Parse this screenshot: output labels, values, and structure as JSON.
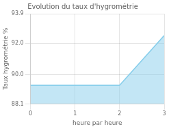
{
  "chart_data": {
    "type": "area",
    "title": "Evolution du taux d'hygrométrie",
    "xlabel": "heure par heure",
    "ylabel": "Taux hygrométrie %",
    "x": [
      0,
      2,
      3
    ],
    "values": [
      89.3,
      89.3,
      92.5
    ],
    "color": "#87ceeb",
    "xlim": [
      0,
      3
    ],
    "ylim": [
      88.1,
      93.9
    ],
    "xticks": [
      0,
      1,
      2,
      3
    ],
    "yticks": [
      88.1,
      {
        "value": 90,
        "label": "90.0"
      },
      {
        "value": 92,
        "label": "92.0"
      },
      93.9
    ],
    "grid": true
  }
}
